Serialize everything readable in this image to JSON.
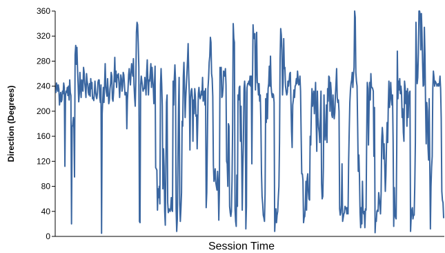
{
  "chart_data": {
    "type": "line",
    "title": "",
    "xlabel": "Session Time",
    "ylabel": "Direction (Degrees)",
    "ylim": [
      0,
      360
    ],
    "yticks": [
      0,
      40,
      80,
      120,
      160,
      200,
      240,
      280,
      320,
      360
    ],
    "grid": false,
    "legend": "none",
    "colors": {
      "series": "#3a66a0",
      "axis": "#000000"
    },
    "series": [
      {
        "values": [
          230,
          245,
          240,
          232,
          242,
          235,
          210,
          220,
          230,
          215,
          218,
          232,
          228,
          245,
          238,
          112,
          225,
          232,
          230,
          238,
          225,
          240,
          218,
          250,
          230,
          225,
          20,
          175,
          178,
          190,
          172,
          95,
          290,
          305,
          275,
          302,
          268,
          242,
          215,
          228,
          262,
          238,
          222,
          250,
          240,
          232,
          270,
          262,
          245,
          236,
          222,
          260,
          248,
          242,
          230,
          226,
          244,
          224,
          252,
          236,
          246,
          220,
          222,
          217,
          228,
          248,
          232,
          224,
          220,
          228,
          246,
          250,
          250,
          222,
          214,
          242,
          5,
          196,
          218,
          238,
          214,
          242,
          276,
          240,
          230,
          224,
          252,
          232,
          212,
          218,
          236,
          244,
          262,
          256,
          220,
          216,
          230,
          255,
          286,
          247,
          264,
          238,
          258,
          254,
          260,
          244,
          222,
          240,
          258,
          252,
          232,
          240,
          262,
          258,
          244,
          226,
          228,
          230,
          172,
          218,
          236,
          258,
          268,
          252,
          242,
          262,
          276,
          264,
          256,
          284,
          242,
          222,
          208,
          250,
          326,
          342,
          338,
          308,
          270,
          24,
          22,
          242,
          256,
          248,
          240,
          232,
          236,
          236,
          254,
          242,
          226,
          262,
          282,
          248,
          226,
          250,
          248,
          262,
          276,
          238,
          270,
          252,
          238,
          212,
          244,
          272,
          110,
          108,
          106,
          42,
          76,
          62,
          80,
          52,
          242,
          268,
          244,
          208,
          76,
          140,
          112,
          40,
          18,
          114,
          214,
          226,
          54,
          38,
          44,
          42,
          40,
          46,
          62,
          42,
          40,
          248,
          210,
          252,
          274,
          250,
          44,
          8,
          28,
          120,
          204,
          254,
          52,
          24,
          44,
          70,
          184,
          176,
          256,
          278,
          240,
          190,
          220,
          240,
          260,
          282,
          308,
          260,
          226,
          138,
          218,
          232,
          236,
          222,
          152,
          218,
          196,
          236,
          224,
          192,
          194,
          140,
          182,
          228,
          238,
          224,
          220,
          224,
          232,
          226,
          254,
          216,
          224,
          232,
          210,
          236,
          46,
          70,
          152,
          236,
          252,
          278,
          288,
          318,
          310,
          260,
          252,
          224,
          114,
          88,
          96,
          108,
          86,
          80,
          74,
          104,
          86,
          26,
          72,
          270,
          262,
          270,
          222,
          224,
          236,
          264,
          262,
          256,
          268,
          242,
          120,
          116,
          80,
          180,
          176,
          48,
          38,
          32,
          40,
          90,
          174,
          340,
          316,
          310,
          44,
          24,
          16,
          98,
          48,
          226,
          218,
          238,
          240,
          152,
          208,
          136,
          42,
          110,
          154,
          236,
          248,
          230,
          12,
          48,
          238,
          244,
          244,
          248,
          242,
          256,
          240,
          256,
          116,
          236,
          338,
          318,
          316,
          324,
          234,
          278,
          326,
          246,
          244,
          226,
          244,
          216,
          226,
          184,
          102,
          64,
          52,
          34,
          30,
          24,
          68,
          220,
          182,
          228,
          188,
          236,
          244,
          272,
          240,
          288,
          240,
          228,
          222,
          228,
          226,
          214,
          8,
          30,
          44,
          22,
          34,
          40,
          62,
          80,
          150,
          284,
          332,
          322,
          298,
          226,
          246,
          316,
          268,
          270,
          240,
          232,
          226,
          230,
          248,
          240,
          248,
          260,
          262,
          216,
          168,
          142,
          210,
          218,
          234,
          222,
          240,
          242,
          252,
          244,
          264,
          252,
          242,
          244,
          256,
          232,
          162,
          100,
          100,
          90,
          22,
          30,
          32,
          50,
          88,
          42,
          92,
          100,
          72,
          60,
          58,
          160,
          146,
          202,
          236,
          208,
          222,
          232,
          196,
          220,
          246,
          184,
          136,
          232,
          190,
          174,
          166,
          150,
          196,
          232,
          84,
          60,
          64,
          110,
          226,
          176,
          154,
          168,
          210,
          150,
          236,
          216,
          256,
          254,
          200,
          246,
          232,
          194,
          190,
          226,
          202,
          188,
          198,
          226,
          244,
          268,
          222,
          214,
          218,
          200,
          44,
          34,
          38,
          50,
          116,
          24,
          30,
          36,
          38,
          48,
          44,
          46,
          36,
          46,
          36,
          120,
          170,
          214,
          234,
          244,
          250,
          262,
          238,
          256,
          270,
          360,
          350,
          262,
          248,
          240,
          176,
          104,
          130,
          96,
          38,
          14,
          46,
          20,
          88,
          40,
          36,
          40,
          14,
          44,
          42,
          156,
          246,
          236,
          146,
          206,
          246,
          218,
          260,
          238,
          238,
          236,
          232,
          128,
          206,
          6,
          28,
          24,
          40,
          42,
          40,
          70,
          60,
          50,
          36,
          68,
          154,
          174,
          160,
          124,
          148,
          114,
          72,
          98,
          146,
          182,
          150,
          212,
          248,
          206,
          218,
          246,
          226,
          210,
          226,
          152,
          16,
          78,
          36,
          30,
          28,
          138,
          296,
          220,
          248,
          234,
          252,
          228,
          240,
          230,
          190,
          204,
          166,
          152,
          248,
          238,
          212,
          232,
          176,
          236,
          190,
          218,
          230,
          232,
          8,
          30,
          42,
          46,
          28,
          34,
          34,
          80,
          150,
          342,
          280,
          244,
          254,
          292,
          360,
          360,
          354,
          298,
          356,
          326,
          278,
          240,
          242,
          334,
          290,
          208,
          148,
          214,
          200,
          144,
          122,
          220,
          116,
          12,
          80,
          110,
          128,
          236,
          264,
          254,
          240,
          248,
          246,
          244,
          240,
          242,
          244,
          240,
          244,
          256,
          236,
          188,
          72,
          58,
          54,
          30
        ]
      }
    ]
  }
}
